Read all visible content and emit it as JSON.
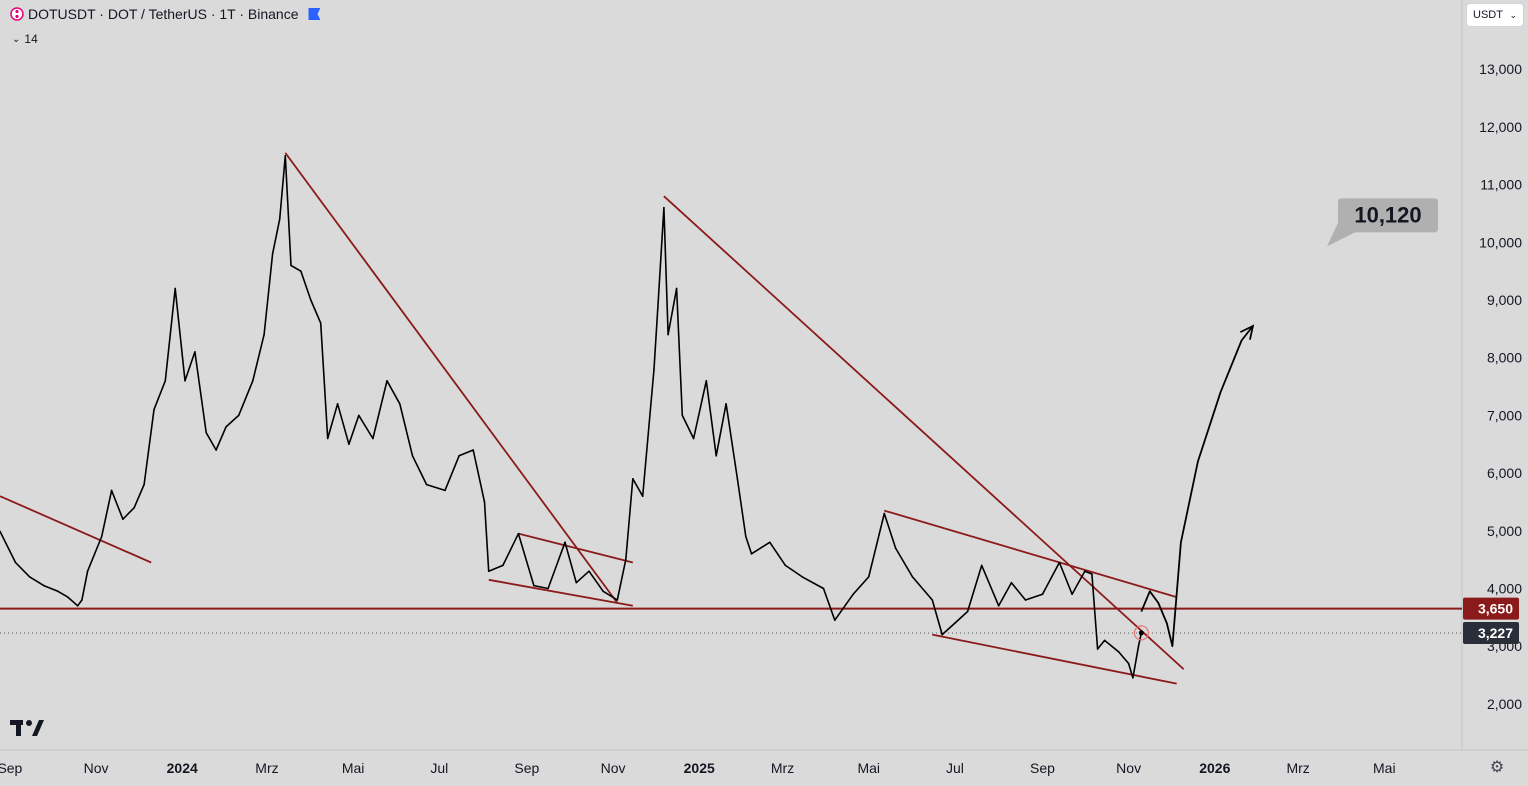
{
  "header": {
    "symbol_line": "DOTUSDT · DOT / TetherUS · 1T · Binance",
    "indicator_value": "14",
    "currency_selector": "USDT"
  },
  "colors": {
    "background": "#dadada",
    "price_line": "#000000",
    "trendline": "#8b1a1a",
    "support_level": "#8b1a1a",
    "label_red": "#8b1a1a",
    "label_dark": "#2a2e39",
    "callout_bg": "#b0b0b0"
  },
  "chart_data": {
    "type": "line",
    "title": "DOTUSDT · DOT / TetherUS · 1T · Binance",
    "xlabel": "",
    "ylabel": "",
    "x_ticks": [
      "Sep",
      "Nov",
      "2024",
      "Mrz",
      "Mai",
      "Jul",
      "Sep",
      "Nov",
      "2025",
      "Mrz",
      "Mai",
      "Jul",
      "Sep",
      "Nov",
      "2026",
      "Mrz",
      "Mai"
    ],
    "y_ticks": [
      "13,000",
      "12,000",
      "11,000",
      "10,000",
      "9,000",
      "8,000",
      "7,000",
      "6,000",
      "5,000",
      "4,000",
      "3,000",
      "2,000"
    ],
    "ylim": [
      1.2,
      14.2
    ],
    "xlim": [
      "2023-08-25",
      "2026-06-25"
    ],
    "series": [
      {
        "values": [
          [
            "2023-08-25",
            4.99
          ],
          [
            "2023-09-05",
            4.45
          ],
          [
            "2023-09-15",
            4.2
          ],
          [
            "2023-09-25",
            4.05
          ],
          [
            "2023-10-05",
            3.95
          ],
          [
            "2023-10-12",
            3.85
          ],
          [
            "2023-10-19",
            3.7
          ],
          [
            "2023-10-22",
            3.8
          ],
          [
            "2023-10-26",
            4.3
          ],
          [
            "2023-11-05",
            4.9
          ],
          [
            "2023-11-12",
            5.7
          ],
          [
            "2023-11-20",
            5.2
          ],
          [
            "2023-11-28",
            5.4
          ],
          [
            "2023-12-05",
            5.8
          ],
          [
            "2023-12-12",
            7.1
          ],
          [
            "2023-12-20",
            7.6
          ],
          [
            "2023-12-27",
            9.2
          ],
          [
            "2024-01-03",
            7.6
          ],
          [
            "2024-01-10",
            8.1
          ],
          [
            "2024-01-18",
            6.7
          ],
          [
            "2024-01-25",
            6.4
          ],
          [
            "2024-02-01",
            6.8
          ],
          [
            "2024-02-10",
            7.0
          ],
          [
            "2024-02-20",
            7.6
          ],
          [
            "2024-02-28",
            8.4
          ],
          [
            "2024-03-05",
            9.8
          ],
          [
            "2024-03-10",
            10.4
          ],
          [
            "2024-03-14",
            11.5
          ],
          [
            "2024-03-18",
            9.6
          ],
          [
            "2024-03-25",
            9.5
          ],
          [
            "2024-04-01",
            9.0
          ],
          [
            "2024-04-08",
            8.6
          ],
          [
            "2024-04-13",
            6.6
          ],
          [
            "2024-04-20",
            7.2
          ],
          [
            "2024-04-28",
            6.5
          ],
          [
            "2024-05-05",
            7.0
          ],
          [
            "2024-05-15",
            6.6
          ],
          [
            "2024-05-25",
            7.6
          ],
          [
            "2024-06-03",
            7.2
          ],
          [
            "2024-06-12",
            6.3
          ],
          [
            "2024-06-22",
            5.8
          ],
          [
            "2024-07-05",
            5.7
          ],
          [
            "2024-07-15",
            6.3
          ],
          [
            "2024-07-25",
            6.4
          ],
          [
            "2024-08-02",
            5.5
          ],
          [
            "2024-08-05",
            4.3
          ],
          [
            "2024-08-15",
            4.4
          ],
          [
            "2024-08-26",
            4.95
          ],
          [
            "2024-09-06",
            4.05
          ],
          [
            "2024-09-16",
            4.0
          ],
          [
            "2024-09-28",
            4.8
          ],
          [
            "2024-10-06",
            4.1
          ],
          [
            "2024-10-15",
            4.3
          ],
          [
            "2024-10-25",
            3.95
          ],
          [
            "2024-11-04",
            3.8
          ],
          [
            "2024-11-10",
            4.5
          ],
          [
            "2024-11-15",
            5.9
          ],
          [
            "2024-11-22",
            5.6
          ],
          [
            "2024-11-30",
            7.8
          ],
          [
            "2024-12-03",
            9.0
          ],
          [
            "2024-12-07",
            10.6
          ],
          [
            "2024-12-10",
            8.4
          ],
          [
            "2024-12-16",
            9.2
          ],
          [
            "2024-12-20",
            7.0
          ],
          [
            "2024-12-28",
            6.6
          ],
          [
            "2025-01-06",
            7.6
          ],
          [
            "2025-01-13",
            6.3
          ],
          [
            "2025-01-20",
            7.2
          ],
          [
            "2025-01-28",
            5.9
          ],
          [
            "2025-02-03",
            4.9
          ],
          [
            "2025-02-07",
            4.6
          ],
          [
            "2025-02-20",
            4.8
          ],
          [
            "2025-03-03",
            4.4
          ],
          [
            "2025-03-15",
            4.2
          ],
          [
            "2025-03-30",
            4.0
          ],
          [
            "2025-04-07",
            3.45
          ],
          [
            "2025-04-20",
            3.9
          ],
          [
            "2025-05-01",
            4.2
          ],
          [
            "2025-05-12",
            5.3
          ],
          [
            "2025-05-20",
            4.7
          ],
          [
            "2025-06-01",
            4.2
          ],
          [
            "2025-06-15",
            3.8
          ],
          [
            "2025-06-22",
            3.2
          ],
          [
            "2025-07-01",
            3.4
          ],
          [
            "2025-07-10",
            3.6
          ],
          [
            "2025-07-20",
            4.4
          ],
          [
            "2025-08-01",
            3.7
          ],
          [
            "2025-08-10",
            4.1
          ],
          [
            "2025-08-20",
            3.8
          ],
          [
            "2025-09-01",
            3.9
          ],
          [
            "2025-09-13",
            4.45
          ],
          [
            "2025-09-22",
            3.9
          ],
          [
            "2025-10-01",
            4.3
          ],
          [
            "2025-10-06",
            4.25
          ],
          [
            "2025-10-10",
            2.95
          ],
          [
            "2025-10-15",
            3.1
          ],
          [
            "2025-10-25",
            2.9
          ],
          [
            "2025-11-01",
            2.7
          ],
          [
            "2025-11-04",
            2.45
          ],
          [
            "2025-11-08",
            3.0
          ],
          [
            "2025-11-10",
            3.23
          ]
        ]
      }
    ],
    "trendlines": [
      {
        "from": [
          "2023-08-25",
          5.6
        ],
        "to": [
          "2023-12-10",
          4.45
        ]
      },
      {
        "from": [
          "2024-03-14",
          11.55
        ],
        "to": [
          "2024-11-04",
          3.75
        ]
      },
      {
        "from": [
          "2024-08-26",
          4.95
        ],
        "to": [
          "2024-11-15",
          4.45
        ]
      },
      {
        "from": [
          "2024-08-05",
          4.15
        ],
        "to": [
          "2024-11-15",
          3.7
        ]
      },
      {
        "from": [
          "2024-12-07",
          10.8
        ],
        "to": [
          "2025-12-10",
          2.6
        ]
      },
      {
        "from": [
          "2025-05-12",
          5.35
        ],
        "to": [
          "2025-12-05",
          3.85
        ]
      },
      {
        "from": [
          "2025-06-15",
          3.2
        ],
        "to": [
          "2025-12-05",
          2.35
        ]
      }
    ],
    "horizontal_level": {
      "value": 3.65,
      "label": "3,650"
    },
    "current_price": {
      "value": 3.227,
      "label": "3,227"
    },
    "projection": [
      [
        "2025-11-10",
        3.6
      ],
      [
        "2025-11-16",
        3.95
      ],
      [
        "2025-11-22",
        3.75
      ],
      [
        "2025-11-28",
        3.4
      ],
      [
        "2025-12-02",
        3.0
      ],
      [
        "2025-12-08",
        4.8
      ],
      [
        "2025-12-20",
        6.2
      ],
      [
        "2026-01-05",
        7.4
      ],
      [
        "2026-01-20",
        8.3
      ],
      [
        "2026-01-28",
        8.55
      ]
    ],
    "target_callout": {
      "value": 10.12,
      "label": "10,120"
    },
    "grid": false
  }
}
